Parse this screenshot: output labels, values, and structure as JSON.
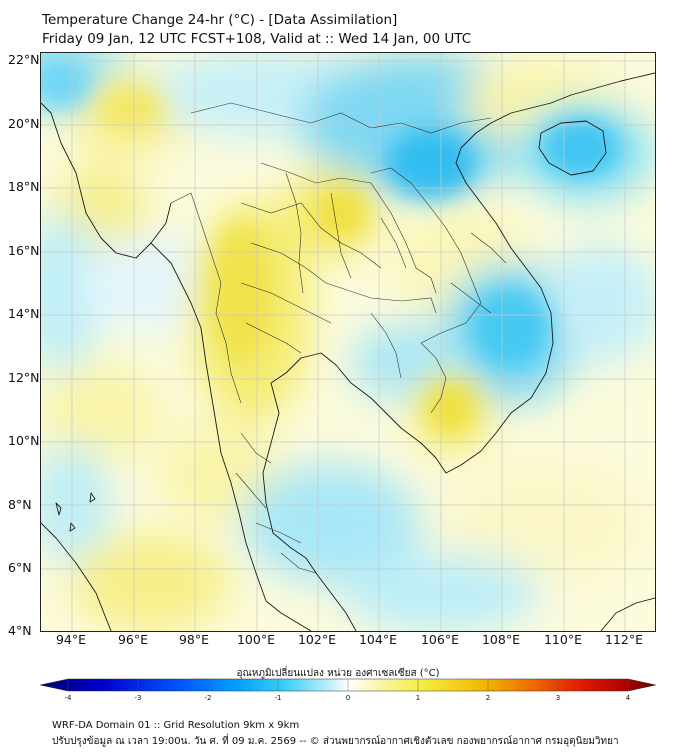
{
  "title": {
    "line1": "Temperature Change 24-hr (°C) - [Data Assimilation]",
    "line2": "Friday 09 Jan, 12 UTC FCST+108, Valid at :: Wed 14 Jan, 00 UTC"
  },
  "map": {
    "lat_labels": [
      "22°N",
      "20°N",
      "18°N",
      "16°N",
      "14°N",
      "12°N",
      "10°N",
      "8°N",
      "6°N",
      "4°N"
    ],
    "lon_labels": [
      "94°E",
      "96°E",
      "98°E",
      "100°E",
      "102°E",
      "104°E",
      "106°E",
      "108°E",
      "110°E",
      "112°E"
    ]
  },
  "colorbar": {
    "title": "อุณหภูมิเปลี่ยนแปลง หน่วย องศาเซลเซียส (°C)",
    "ticks": [
      "-4",
      "-3",
      "-2",
      "-1",
      "0",
      "1",
      "2",
      "3",
      "4"
    ],
    "range": [
      -4,
      4
    ],
    "colors": [
      "#00006e",
      "#0000cd",
      "#0050ff",
      "#00a0ff",
      "#3fd0f5",
      "#bfeff8",
      "#ffffff",
      "#fbf7b8",
      "#f5ee40",
      "#f2b800",
      "#ee6a00",
      "#e01a00",
      "#b00000",
      "#6e0000"
    ]
  },
  "footer": {
    "line1": "WRF-DA Domain 01 :: Grid Resolution 9km x 9km",
    "line2": "ปรับปรุงข้อมูล ณ เวลา 19:00น. วัน ศ. ที่ 09 ม.ค. 2569 -- © ส่วนพยากรณ์อากาศเชิงตัวเลข กองพยากรณ์อากาศ กรมอุตุนิยมวิทยา"
  }
}
